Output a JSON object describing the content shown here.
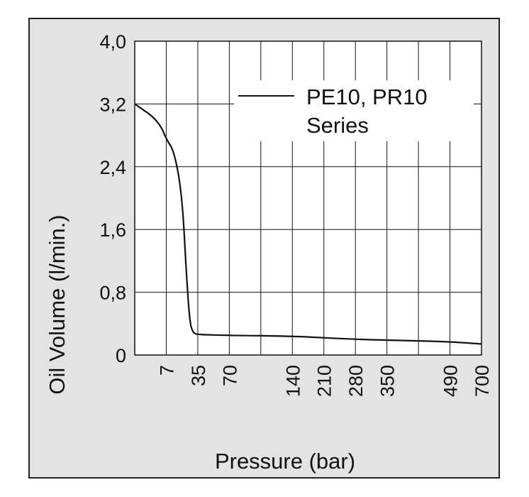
{
  "chart_data": {
    "type": "line",
    "title": "",
    "xlabel": "Pressure (bar)",
    "ylabel": "Oil Volume (l/min.)",
    "x_scale": "categorical",
    "x_tick_labels": [
      "7",
      "35",
      "70",
      "140",
      "210",
      "280",
      "350",
      "490",
      "700"
    ],
    "y_ticks": [
      "0",
      "0,8",
      "1,6",
      "2,4",
      "3,2",
      "4,0"
    ],
    "ylim": [
      0,
      4.0
    ],
    "grid": true,
    "legend_position": "top-right",
    "series": [
      {
        "name": "PE10, PR10 Series",
        "color": "#111111",
        "points": [
          {
            "x": "0",
            "y": 3.2
          },
          {
            "x": "2",
            "y": 3.12
          },
          {
            "x": "4",
            "y": 3.04
          },
          {
            "x": "6",
            "y": 2.9
          },
          {
            "x": "7",
            "y": 2.75
          },
          {
            "x": "14",
            "y": 2.6
          },
          {
            "x": "21",
            "y": 2.05
          },
          {
            "x": "25",
            "y": 1.0
          },
          {
            "x": "28",
            "y": 0.4
          },
          {
            "x": "31",
            "y": 0.28
          },
          {
            "x": "35",
            "y": 0.26
          },
          {
            "x": "70",
            "y": 0.25
          },
          {
            "x": "140",
            "y": 0.24
          },
          {
            "x": "210",
            "y": 0.22
          },
          {
            "x": "280",
            "y": 0.2
          },
          {
            "x": "350",
            "y": 0.19
          },
          {
            "x": "490",
            "y": 0.17
          },
          {
            "x": "700",
            "y": 0.14
          }
        ]
      }
    ],
    "legend": {
      "line1": "PE10, PR10",
      "line2": "Series"
    }
  }
}
